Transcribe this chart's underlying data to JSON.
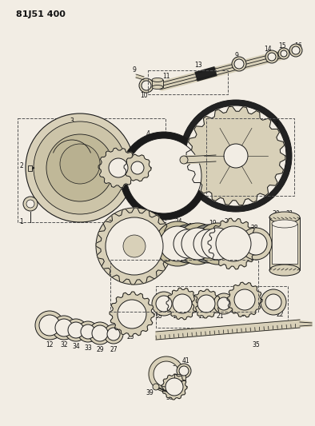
{
  "title": "81J51 400",
  "bg_color": "#f2ede4",
  "line_color": "#1a1a1a",
  "fill_light": "#d8d0b8",
  "fill_dark": "#b0a888",
  "fill_black": "#222222",
  "figsize": [
    3.94,
    5.33
  ],
  "dpi": 100
}
